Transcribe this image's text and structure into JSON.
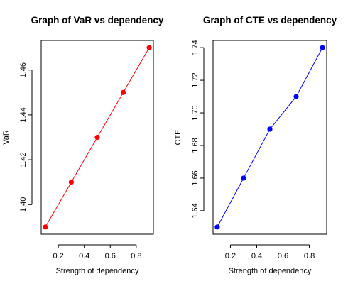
{
  "chart_data": [
    {
      "type": "line",
      "title": "Graph of VaR vs dependency",
      "xlabel": "Strength of dependency",
      "ylabel": "VaR",
      "x": [
        0.1,
        0.3,
        0.5,
        0.7,
        0.9
      ],
      "series": [
        {
          "values": [
            1.39,
            1.41,
            1.43,
            1.45,
            1.47
          ],
          "color": "#ff0000"
        }
      ],
      "xlim": [
        0.068,
        0.932
      ],
      "ylim": [
        1.3868,
        1.4732
      ],
      "xticks": [
        0.2,
        0.4,
        0.6,
        0.8
      ],
      "xtick_labels": [
        "0.2",
        "0.4",
        "0.6",
        "0.8"
      ],
      "yticks": [
        1.4,
        1.42,
        1.44,
        1.46
      ],
      "ytick_labels": [
        "1.40",
        "1.42",
        "1.44",
        "1.46"
      ],
      "grid": false,
      "legend": "none"
    },
    {
      "type": "line",
      "title": "Graph of CTE vs dependency",
      "xlabel": "Strength of dependency",
      "ylabel": "CTE",
      "x": [
        0.1,
        0.3,
        0.5,
        0.7,
        0.9
      ],
      "series": [
        {
          "values": [
            1.63,
            1.66,
            1.69,
            1.71,
            1.74
          ],
          "color": "#0000ff"
        }
      ],
      "xlim": [
        0.068,
        0.932
      ],
      "ylim": [
        1.6256,
        1.7444
      ],
      "xticks": [
        0.2,
        0.4,
        0.6,
        0.8
      ],
      "xtick_labels": [
        "0.2",
        "0.4",
        "0.6",
        "0.8"
      ],
      "yticks": [
        1.64,
        1.66,
        1.68,
        1.7,
        1.72,
        1.74
      ],
      "ytick_labels": [
        "1.64",
        "1.66",
        "1.68",
        "1.70",
        "1.72",
        "1.74"
      ],
      "grid": false,
      "legend": "none"
    }
  ]
}
